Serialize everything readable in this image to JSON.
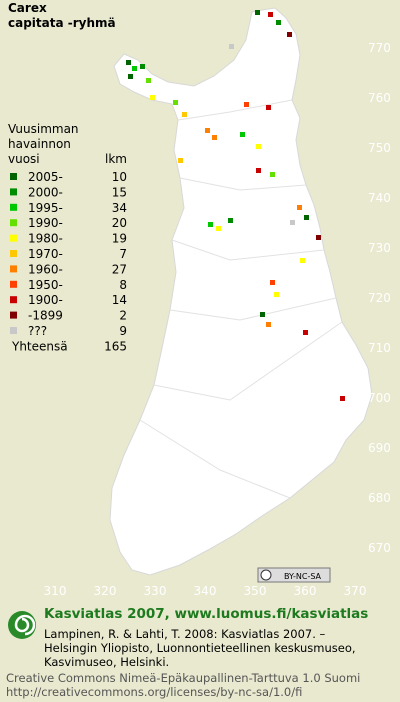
{
  "title": [
    "Carex",
    "capitata -ryhmä"
  ],
  "legend": {
    "heading": [
      "Vuusimman",
      "havainnon",
      "vuosi"
    ],
    "count_heading": "lkm",
    "entries": [
      {
        "label": "2005-",
        "count": 10,
        "color": "#006400"
      },
      {
        "label": "2000-",
        "count": 15,
        "color": "#008c00"
      },
      {
        "label": "1995-",
        "count": 34,
        "color": "#00c800"
      },
      {
        "label": "1990-",
        "count": 20,
        "color": "#64e000"
      },
      {
        "label": "1980-",
        "count": 19,
        "color": "#ffff00"
      },
      {
        "label": "1970-",
        "count": 7,
        "color": "#ffc800"
      },
      {
        "label": "1960-",
        "count": 27,
        "color": "#ff8000"
      },
      {
        "label": "1950-",
        "count": 8,
        "color": "#ff4000"
      },
      {
        "label": "1900-",
        "count": 14,
        "color": "#c80000"
      },
      {
        "label": "-1899",
        "count": 2,
        "color": "#800000"
      },
      {
        "label": "???",
        "count": 9,
        "color": "#c8c8c8"
      }
    ],
    "total": {
      "label": "Yhteensä",
      "count": 165
    }
  },
  "y_labels": [
    770,
    760,
    750,
    740,
    730,
    720,
    710,
    700,
    690,
    680,
    670
  ],
  "x_labels": [
    310,
    320,
    330,
    340,
    350,
    360,
    370
  ],
  "license_badge": "BY-NC-SA",
  "footer": {
    "brand": "Kasviatlas 2007, www.luomus.fi/kasviatlas",
    "citation": [
      "Lampinen, R. & Lahti, T. 2008: Kasviatlas 2007. –",
      "Helsingin Yliopisto, Luonnontieteellinen keskusmuseo,",
      "Kasvimuseo, Helsinki."
    ],
    "license": [
      "Creative Commons Nimeä-Epäkaupallinen-Tarttuva 1.0 Suomi",
      "http://creativecommons.org/licenses/by-nc-sa/1.0/fi"
    ]
  }
}
